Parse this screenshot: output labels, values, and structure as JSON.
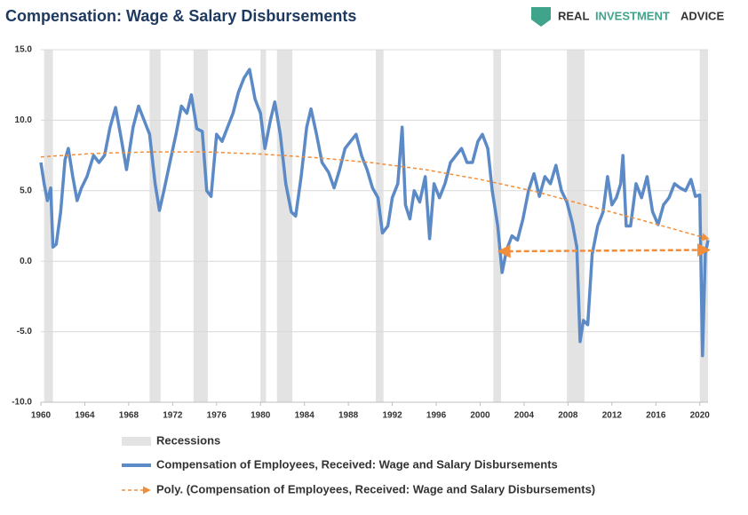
{
  "chart_data": {
    "type": "line",
    "title": "Compensation: Wage & Salary Disbursements",
    "logo": {
      "left": "REAL",
      "middle": "INVESTMENT",
      "right": "ADVICE"
    },
    "xlim": [
      1960,
      2020.75
    ],
    "xticks": [
      1960,
      1964,
      1968,
      1972,
      1976,
      1980,
      1984,
      1988,
      1992,
      1996,
      2000,
      2004,
      2008,
      2012,
      2016,
      2020
    ],
    "ylim": [
      -10,
      15
    ],
    "yticks": [
      {
        "value": -10,
        "label": "-10.0"
      },
      {
        "value": -5,
        "label": "-5.0"
      },
      {
        "value": 0,
        "label": "0.0"
      },
      {
        "value": 5,
        "label": "5.0"
      },
      {
        "value": 10,
        "label": "10.0"
      },
      {
        "value": 15,
        "label": "15.0"
      }
    ],
    "grid": true,
    "recessions": {
      "name": "Recessions",
      "color": "#e3e3e3",
      "spans": [
        [
          1960.3,
          1961.1
        ],
        [
          1969.9,
          1970.9
        ],
        [
          1973.9,
          1975.2
        ],
        [
          1980.0,
          1980.5
        ],
        [
          1981.5,
          1982.9
        ],
        [
          1990.5,
          1991.2
        ],
        [
          2001.2,
          2001.9
        ],
        [
          2007.9,
          2009.5
        ],
        [
          2020.0,
          2020.75
        ]
      ]
    },
    "series": [
      {
        "name": "Compensation of Employees, Received: Wage and Salary Disbursements",
        "color": "#5b8ac6",
        "x": [
          1960,
          1960.3,
          1960.6,
          1960.9,
          1961.1,
          1961.4,
          1961.8,
          1962.2,
          1962.5,
          1962.9,
          1963.3,
          1963.7,
          1964.2,
          1964.8,
          1965.3,
          1965.8,
          1966.3,
          1966.8,
          1967.3,
          1967.8,
          1968.4,
          1968.9,
          1969.4,
          1969.9,
          1970.4,
          1970.8,
          1971.2,
          1971.8,
          1972.3,
          1972.8,
          1973.3,
          1973.7,
          1974.2,
          1974.7,
          1975.1,
          1975.5,
          1976.0,
          1976.5,
          1977.0,
          1977.5,
          1978.0,
          1978.5,
          1979.0,
          1979.5,
          1980.0,
          1980.4,
          1980.9,
          1981.3,
          1981.8,
          1982.3,
          1982.8,
          1983.2,
          1983.7,
          1984.2,
          1984.6,
          1985.1,
          1985.6,
          1986.2,
          1986.7,
          1987.2,
          1987.7,
          1988.2,
          1988.7,
          1989.2,
          1989.7,
          1990.2,
          1990.7,
          1991.1,
          1991.6,
          1992.0,
          1992.5,
          1992.9,
          1993.2,
          1993.6,
          1994.0,
          1994.5,
          1995.0,
          1995.4,
          1995.8,
          1996.3,
          1996.8,
          1997.3,
          1997.8,
          1998.3,
          1998.8,
          1999.3,
          1999.8,
          2000.2,
          2000.7,
          2001.1,
          2001.6,
          2002.0,
          2002.4,
          2002.9,
          2003.4,
          2003.9,
          2004.4,
          2004.9,
          2005.4,
          2005.9,
          2006.4,
          2006.9,
          2007.4,
          2007.9,
          2008.4,
          2008.8,
          2009.1,
          2009.4,
          2009.8,
          2010.2,
          2010.7,
          2011.2,
          2011.6,
          2012.0,
          2012.4,
          2012.8,
          2013.0,
          2013.3,
          2013.7,
          2014.2,
          2014.7,
          2015.2,
          2015.7,
          2016.2,
          2016.7,
          2017.2,
          2017.7,
          2018.2,
          2018.7,
          2019.2,
          2019.6,
          2020.0,
          2020.25,
          2020.5,
          2020.75
        ],
        "values": [
          7.0,
          5.5,
          4.3,
          5.2,
          1.0,
          1.2,
          3.5,
          7.2,
          8.0,
          6.0,
          4.3,
          5.2,
          6.0,
          7.5,
          7.0,
          7.5,
          9.5,
          10.9,
          8.8,
          6.5,
          9.5,
          11.0,
          10.0,
          9.0,
          5.5,
          3.6,
          5.0,
          7.2,
          9.0,
          11.0,
          10.5,
          11.8,
          9.4,
          9.2,
          5.0,
          4.6,
          9.0,
          8.5,
          9.5,
          10.5,
          12.0,
          13.0,
          13.6,
          11.5,
          10.5,
          8.0,
          10.0,
          11.3,
          9.0,
          5.5,
          3.5,
          3.2,
          6.0,
          9.5,
          10.8,
          9.0,
          7.0,
          6.3,
          5.2,
          6.5,
          8.0,
          8.5,
          9.0,
          7.5,
          6.5,
          5.2,
          4.5,
          2.0,
          2.5,
          4.5,
          5.5,
          9.5,
          4.0,
          3.0,
          5.0,
          4.2,
          6.0,
          1.6,
          5.5,
          4.5,
          5.5,
          7.0,
          7.5,
          8.0,
          7.0,
          7.0,
          8.5,
          9.0,
          8.0,
          5.0,
          2.5,
          -0.8,
          0.8,
          1.8,
          1.5,
          3.0,
          5.0,
          6.2,
          4.6,
          6.0,
          5.5,
          6.8,
          5.0,
          4.2,
          2.7,
          1.0,
          -5.7,
          -4.2,
          -4.5,
          0.5,
          2.5,
          3.5,
          6.0,
          4.0,
          4.5,
          5.5,
          7.5,
          2.5,
          2.5,
          5.5,
          4.5,
          6.0,
          3.5,
          2.6,
          4.0,
          4.5,
          5.5,
          5.2,
          5.0,
          5.8,
          4.6,
          4.7,
          -6.7,
          0.5,
          1.5
        ]
      },
      {
        "name": "Poly. (Compensation of Employees, Received: Wage and Salary Disbursements)",
        "color": "#f28e3a",
        "dashed": true,
        "x": [
          1960,
          1965,
          1970,
          1975,
          1980,
          1985,
          1990,
          1995,
          2000,
          2005,
          2010,
          2015,
          2020.75
        ],
        "values": [
          7.4,
          7.65,
          7.75,
          7.75,
          7.6,
          7.35,
          7.0,
          6.5,
          5.8,
          4.95,
          3.9,
          2.85,
          1.6
        ]
      }
    ],
    "annotation_arrow": {
      "color": "#f28e3a",
      "x": [
        2001.8,
        2020.75
      ],
      "y": [
        0.7,
        0.8
      ]
    }
  }
}
